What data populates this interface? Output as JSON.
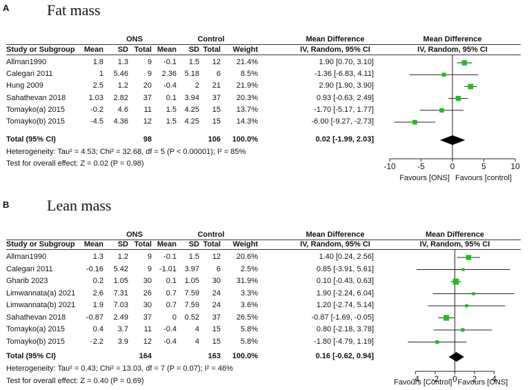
{
  "chart_data": [
    {
      "type": "forest",
      "panel": "A",
      "title": "Fat mass",
      "group_left": "ONS",
      "group_right": "Control",
      "header_md": "Mean Difference",
      "header_md_sub": "IV, Random, 95% CI",
      "columns": [
        "Study or Subgroup",
        "Mean",
        "SD",
        "Total",
        "Mean",
        "SD",
        "Total",
        "Weight",
        "IV, Random, 95% CI"
      ],
      "studies": [
        {
          "name": "Allman1990",
          "m1": "1.8",
          "sd1": "1.3",
          "n1": "9",
          "m2": "-0.1",
          "sd2": "1.5",
          "n2": "12",
          "weight": "21.4%",
          "ci": "1.90 [0.70, 3.10]",
          "md": 1.9,
          "lo": 0.7,
          "hi": 3.1
        },
        {
          "name": "Calegari 2011",
          "m1": "1",
          "sd1": "5.46",
          "n1": "9",
          "m2": "2.36",
          "sd2": "5.18",
          "n2": "6",
          "weight": "8.5%",
          "ci": "-1.36 [-6.83, 4.11]",
          "md": -1.36,
          "lo": -6.83,
          "hi": 4.11
        },
        {
          "name": "Hung 2009",
          "m1": "2.5",
          "sd1": "1.2",
          "n1": "20",
          "m2": "-0.4",
          "sd2": "2",
          "n2": "21",
          "weight": "21.9%",
          "ci": "2.90 [1.90, 3.90]",
          "md": 2.9,
          "lo": 1.9,
          "hi": 3.9
        },
        {
          "name": "Sahathevan 2018",
          "m1": "1.03",
          "sd1": "2.82",
          "n1": "37",
          "m2": "0.1",
          "sd2": "3.94",
          "n2": "37",
          "weight": "20.3%",
          "ci": "0.93 [-0.63, 2.49]",
          "md": 0.93,
          "lo": -0.63,
          "hi": 2.49
        },
        {
          "name": "Tomayko(a) 2015",
          "m1": "-0.2",
          "sd1": "4.6",
          "n1": "11",
          "m2": "1.5",
          "sd2": "4.25",
          "n2": "15",
          "weight": "13.7%",
          "ci": "-1.70 [-5.17, 1.77]",
          "md": -1.7,
          "lo": -5.17,
          "hi": 1.77
        },
        {
          "name": "Tomayko(b) 2015",
          "m1": "-4.5",
          "sd1": "4.36",
          "n1": "12",
          "m2": "1.5",
          "sd2": "4.25",
          "n2": "15",
          "weight": "14.3%",
          "ci": "-6.00 [-9.27, -2.73]",
          "md": -6.0,
          "lo": -9.27,
          "hi": -2.73
        }
      ],
      "total": {
        "label": "Total (95% CI)",
        "n1": "98",
        "n2": "106",
        "weight": "100.0%",
        "ci": "0.02 [-1.99, 2.03]",
        "md": 0.02,
        "lo": -1.99,
        "hi": 2.03
      },
      "heterogeneity": "Heterogeneity: Tau² = 4.53; Chi² = 32.68, df = 5 (P < 0.00001); I² = 85%",
      "overall_effect": "Test for overall effect: Z = 0.02 (P = 0.98)",
      "xlim": [
        -10,
        10
      ],
      "xticks": [
        -10,
        -5,
        0,
        5,
        10
      ],
      "favours_left": "Favours [ONS]",
      "favours_right": "Favours [control]"
    },
    {
      "type": "forest",
      "panel": "B",
      "title": "Lean mass",
      "group_left": "ONS",
      "group_right": "Control",
      "header_md": "Mean Difference",
      "header_md_sub": "IV, Random, 95% CI",
      "columns": [
        "Study or Subgroup",
        "Mean",
        "SD",
        "Total",
        "Mean",
        "SD",
        "Total",
        "Weight",
        "IV, Random, 95% CI"
      ],
      "studies": [
        {
          "name": "Allman1990",
          "m1": "1.3",
          "sd1": "1.2",
          "n1": "9",
          "m2": "-0.1",
          "sd2": "1.5",
          "n2": "12",
          "weight": "20.6%",
          "ci": "1.40 [0.24, 2.56]",
          "md": 1.4,
          "lo": 0.24,
          "hi": 2.56
        },
        {
          "name": "Calegari 2011",
          "m1": "-0.16",
          "sd1": "5.42",
          "n1": "9",
          "m2": "-1.01",
          "sd2": "3.97",
          "n2": "6",
          "weight": "2.5%",
          "ci": "0.85 [-3.91, 5.61]",
          "md": 0.85,
          "lo": -3.91,
          "hi": 5.61
        },
        {
          "name": "Gharib 2023",
          "m1": "0.2",
          "sd1": "1.05",
          "n1": "30",
          "m2": "0.1",
          "sd2": "1.05",
          "n2": "30",
          "weight": "31.9%",
          "ci": "0.10 [-0.43, 0.63]",
          "md": 0.1,
          "lo": -0.43,
          "hi": 0.63
        },
        {
          "name": "Limwannata(a) 2021",
          "m1": "2.6",
          "sd1": "7.31",
          "n1": "26",
          "m2": "0.7",
          "sd2": "7.59",
          "n2": "24",
          "weight": "3.3%",
          "ci": "1.90 [-2.24, 6.04]",
          "md": 1.9,
          "lo": -2.24,
          "hi": 6.04
        },
        {
          "name": "Limwannata(b) 2021",
          "m1": "1.9",
          "sd1": "7.03",
          "n1": "30",
          "m2": "0.7",
          "sd2": "7.59",
          "n2": "24",
          "weight": "3.6%",
          "ci": "1.20 [-2.74, 5.14]",
          "md": 1.2,
          "lo": -2.74,
          "hi": 5.14
        },
        {
          "name": "Sahathevan 2018",
          "m1": "-0.87",
          "sd1": "2.49",
          "n1": "37",
          "m2": "0",
          "sd2": "0.52",
          "n2": "37",
          "weight": "26.5%",
          "ci": "-0.87 [-1.69, -0.05]",
          "md": -0.87,
          "lo": -1.69,
          "hi": -0.05
        },
        {
          "name": "Tomayko(a) 2015",
          "m1": "0.4",
          "sd1": "3.7",
          "n1": "11",
          "m2": "-0.4",
          "sd2": "4",
          "n2": "15",
          "weight": "5.8%",
          "ci": "0.80 [-2.18, 3.78]",
          "md": 0.8,
          "lo": -2.18,
          "hi": 3.78
        },
        {
          "name": "Tomayko(b) 2015",
          "m1": "-2.2",
          "sd1": "3.9",
          "n1": "12",
          "m2": "-0.4",
          "sd2": "4",
          "n2": "15",
          "weight": "5.8%",
          "ci": "-1.80 [-4.79, 1.19]",
          "md": -1.8,
          "lo": -4.79,
          "hi": 1.19
        }
      ],
      "total": {
        "label": "Total (95% CI)",
        "n1": "164",
        "n2": "163",
        "weight": "100.0%",
        "ci": "0.16 [-0.62, 0.94]",
        "md": 0.16,
        "lo": -0.62,
        "hi": 0.94
      },
      "heterogeneity": "Heterogeneity: Tau² = 0.43; Chi² = 13.03, df = 7 (P = 0.07); I² = 46%",
      "overall_effect": "Test for overall effect: Z = 0.40 (P = 0.69)",
      "xlim": [
        -6.5,
        6.5
      ],
      "xticks": [
        -4,
        -2,
        0,
        2,
        4
      ],
      "favours_left": "Favours [Control]",
      "favours_right": "Favours [ONS]"
    }
  ],
  "colors": {
    "marker": "#22bb22",
    "diamond": "#000000",
    "line": "#222222"
  }
}
